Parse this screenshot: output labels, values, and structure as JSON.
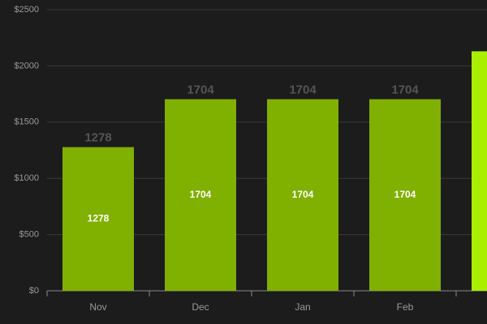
{
  "chart_data": {
    "type": "bar",
    "categories": [
      "Nov",
      "Dec",
      "Jan",
      "Feb",
      null
    ],
    "values": [
      1278,
      1704,
      1704,
      1704,
      2130
    ],
    "colors": [
      "#80b000",
      "#80b000",
      "#80b000",
      "#80b000",
      "#aaee00"
    ],
    "ylim": [
      0,
      2500
    ],
    "yticks": [
      {
        "value": 0,
        "label": "$0"
      },
      {
        "value": 500,
        "label": "$500"
      },
      {
        "value": 1000,
        "label": "$1000"
      },
      {
        "value": 1500,
        "label": "$1500"
      },
      {
        "value": 2000,
        "label": "$2000"
      },
      {
        "value": 2500,
        "label": "$2500"
      }
    ],
    "grid": true
  }
}
